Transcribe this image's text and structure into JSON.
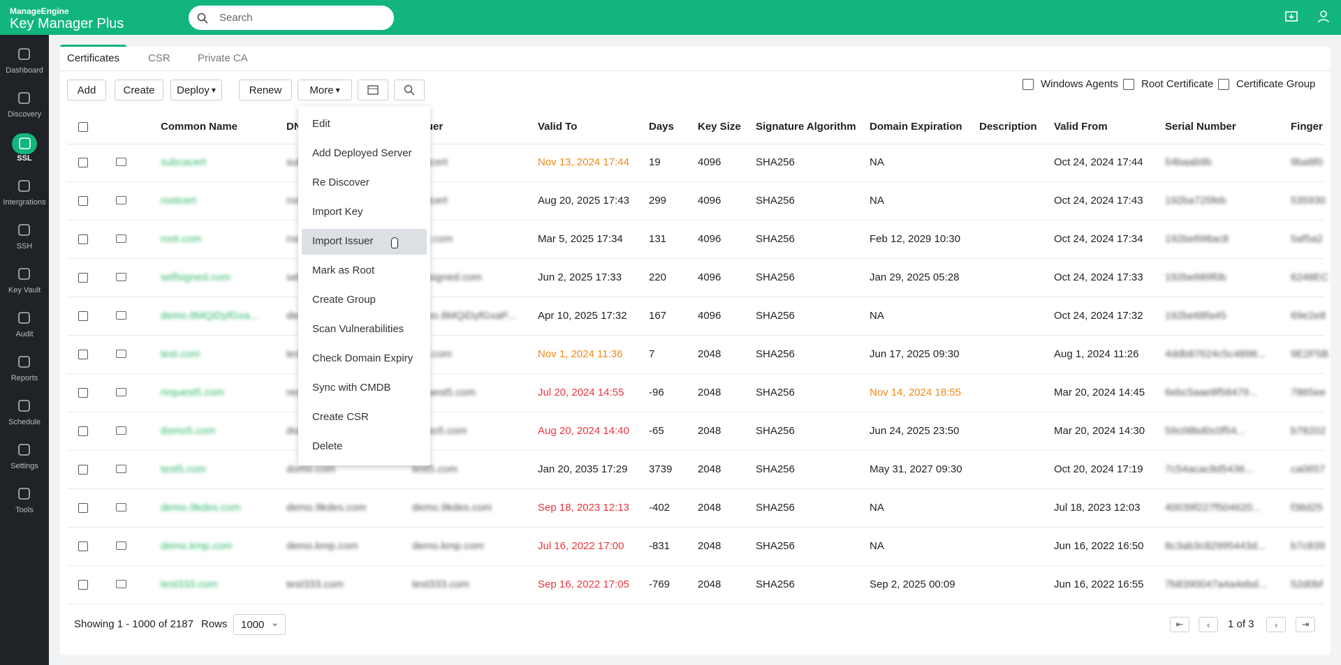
{
  "header": {
    "brand_small": "ManageEngine",
    "brand": "Key Manager Plus",
    "search_placeholder": "Search"
  },
  "sidebar": [
    "Dashboard",
    "Discovery",
    "SSL",
    "Intergrations",
    "SSH",
    "Key Vault",
    "Audit",
    "Reports",
    "Schedule",
    "Settings",
    "Tools"
  ],
  "sidebar_active": 2,
  "tabs": [
    "Certificates",
    "CSR",
    "Private CA"
  ],
  "toolbar": [
    "Add",
    "Create",
    "Deploy",
    "Renew",
    "More"
  ],
  "right_links": [
    "Windows Agents",
    "Root Certificate",
    "Certificate Group"
  ],
  "table": {
    "columns": [
      "Common Name",
      "DNS",
      "Issuer",
      "Valid To",
      "Days",
      "Key Size",
      "Signature Algorithm",
      "Domain Expiration",
      "Description",
      "Valid From",
      "Serial Number",
      "Finger"
    ],
    "rows": [
      {
        "common_name": "subcacert",
        "dns": "subcacert",
        "issuer": "rootcert",
        "valid_to": "Nov 13, 2024 17:44",
        "valid_to_color": "orange",
        "days": "19",
        "key_size": "4096",
        "signature_algorithm": "SHA256",
        "domain_expiration": "NA",
        "valid_from": "Oct 24, 2024 17:44",
        "serial_number": "54baab9b",
        "fingerprint": "9ba8f0"
      },
      {
        "common_name": "rootcert",
        "dns": "rootcert",
        "issuer": "rootcert",
        "valid_to": "Aug 20, 2025 17:43",
        "days": "299",
        "key_size": "4096",
        "signature_algorithm": "SHA256",
        "domain_expiration": "NA",
        "valid_from": "Oct 24, 2024 17:43",
        "serial_number": "192ba725feb",
        "fingerprint": "535930"
      },
      {
        "common_name": "root.com",
        "dns": "root.com",
        "issuer": "root.com",
        "valid_to": "Mar 5, 2025 17:34",
        "days": "131",
        "key_size": "4096",
        "signature_algorithm": "SHA256",
        "domain_expiration": "Feb 12, 2029 10:30",
        "valid_from": "Oct 24, 2024 17:34",
        "serial_number": "192be698ac8",
        "fingerprint": "5af5a2"
      },
      {
        "common_name": "selfsigned.com",
        "dns": "selfsigned.com",
        "issuer": "selfsigned.com",
        "valid_to": "Jun 2, 2025 17:33",
        "days": "220",
        "key_size": "4096",
        "signature_algorithm": "SHA256",
        "domain_expiration": "Jan 29, 2025 05:28",
        "valid_from": "Oct 24, 2024 17:33",
        "serial_number": "192be689f0b",
        "fingerprint": "6248EC"
      },
      {
        "common_name": "demo.8MQiDyfGxa...",
        "dns": "demo.8MQiDyfGxa...",
        "issuer": "demo.8MQiDyfGxaP...",
        "valid_to": "Apr 10, 2025 17:32",
        "days": "167",
        "key_size": "4096",
        "signature_algorithm": "SHA256",
        "domain_expiration": "NA",
        "valid_from": "Oct 24, 2024 17:32",
        "serial_number": "192be68fa45",
        "fingerprint": "69e2e8"
      },
      {
        "common_name": "test.com",
        "dns": "test.com",
        "issuer": "test.com",
        "valid_to": "Nov 1, 2024 11:36",
        "valid_to_color": "orange",
        "days": "7",
        "key_size": "2048",
        "signature_algorithm": "SHA256",
        "domain_expiration": "Jun 17, 2025 09:30",
        "valid_from": "Aug 1, 2024 11:26",
        "serial_number": "4ddb87624c5c4898...",
        "fingerprint": "9E2F5B"
      },
      {
        "common_name": "request5.com",
        "dns": "request5.com",
        "issuer": "request5.com",
        "valid_to": "Jul 20, 2024 14:55",
        "valid_to_color": "red",
        "days": "-96",
        "key_size": "2048",
        "signature_algorithm": "SHA256",
        "domain_expiration": "Nov 14, 2024 18:55",
        "domain_expiration_color": "orange",
        "valid_from": "Mar 20, 2024 14:45",
        "serial_number": "6ebc5aae8f58479...",
        "fingerprint": "7865ee"
      },
      {
        "common_name": "domo5.com",
        "dns": "domo5.com",
        "issuer": "domo5.com",
        "valid_to": "Aug 20, 2024 14:40",
        "valid_to_color": "red",
        "days": "-65",
        "key_size": "2048",
        "signature_algorithm": "SHA256",
        "domain_expiration": "Jun 24, 2025 23:50",
        "valid_from": "Mar 20, 2024 14:30",
        "serial_number": "59c08bd0c0f54...",
        "fingerprint": "b78202"
      },
      {
        "common_name": "test5.com",
        "dns": "domo.com",
        "issuer": "test5.com",
        "valid_to": "Jan 20, 2035 17:29",
        "days": "3739",
        "key_size": "2048",
        "signature_algorithm": "SHA256",
        "domain_expiration": "May 31, 2027 09:30",
        "valid_from": "Oct 20, 2024 17:19",
        "serial_number": "7c54acac8d5436...",
        "fingerprint": "ca0657"
      },
      {
        "common_name": "demo.9kdes.com",
        "dns": "demo.9kdes.com",
        "issuer": "demo.9kdes.com",
        "valid_to": "Sep 18, 2023 12:13",
        "valid_to_color": "red",
        "days": "-402",
        "key_size": "2048",
        "signature_algorithm": "SHA256",
        "domain_expiration": "NA",
        "valid_from": "Jul 18, 2023 12:03",
        "serial_number": "40039f227f504620...",
        "fingerprint": "f38d25"
      },
      {
        "common_name": "demo.kmp.com",
        "dns": "demo.kmp.com",
        "issuer": "demo.kmp.com",
        "valid_to": "Jul 16, 2022 17:00",
        "valid_to_color": "red",
        "days": "-831",
        "key_size": "2048",
        "signature_algorithm": "SHA256",
        "domain_expiration": "NA",
        "valid_from": "Jun 16, 2022 16:50",
        "serial_number": "8c3ab3c82995443d...",
        "fingerprint": "b7c839"
      },
      {
        "common_name": "test333.com",
        "dns": "test333.com",
        "issuer": "test333.com",
        "valid_to": "Sep 16, 2022 17:05",
        "valid_to_color": "red",
        "days": "-769",
        "key_size": "2048",
        "signature_algorithm": "SHA256",
        "domain_expiration": "Sep 2, 2025 00:09",
        "valid_from": "Jun 16, 2022 16:55",
        "serial_number": "7b8390047a4a4ebd...",
        "fingerprint": "52d0bf"
      }
    ]
  },
  "menu": [
    "Edit",
    "Add Deployed Server",
    "Re Discover",
    "Import Key",
    "Import Issuer",
    "Mark as Root",
    "Create Group",
    "Scan Vulnerabilities",
    "Check Domain Expiry",
    "Sync with CMDB",
    "Create CSR",
    "Delete"
  ],
  "menu_hover": 4,
  "footer": {
    "showing": "Showing 1 - 1000 of 2187",
    "rows_label": "Rows",
    "rows_value": "1000",
    "page": "1 of 3"
  }
}
